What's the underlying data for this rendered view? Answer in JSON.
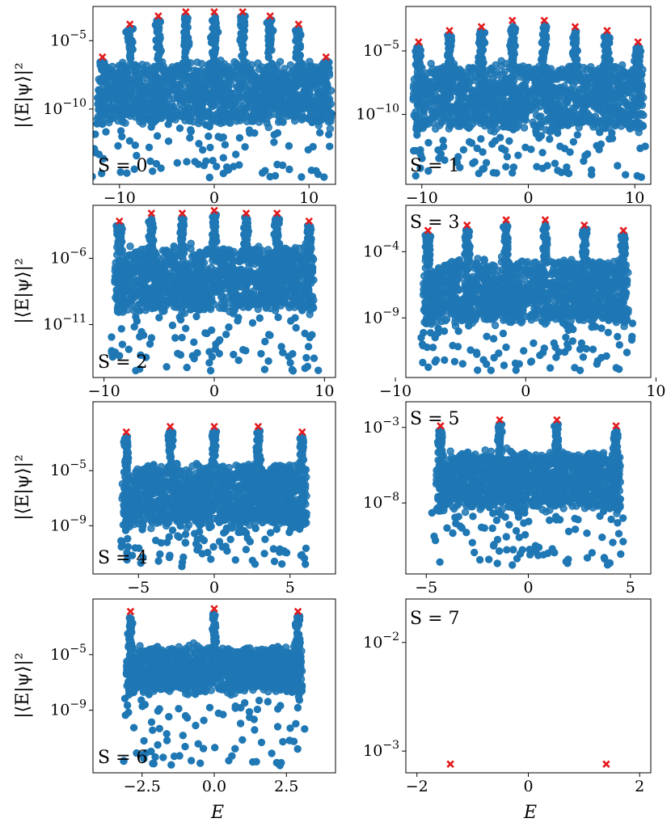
{
  "ylabel": "|⟨E|ψ⟩|²",
  "xlabel": "E",
  "colors": {
    "points": "#1f77b4",
    "markers": "#e41a1c"
  },
  "chart_data": [
    {
      "type": "scatter",
      "label": "S = 0",
      "xlim": [
        -12.8,
        12.8
      ],
      "ylog": true,
      "ylim": [
        -15.5,
        -2.5
      ],
      "xticks": [
        -10,
        0,
        10
      ],
      "yticks": [
        -5,
        -10
      ],
      "markers": [
        [
          -11.8,
          -6.2
        ],
        [
          -8.9,
          -3.8
        ],
        [
          -5.9,
          -3.2
        ],
        [
          -3.0,
          -2.9
        ],
        [
          0.0,
          -2.9
        ],
        [
          3.0,
          -2.9
        ],
        [
          5.9,
          -3.2
        ],
        [
          8.9,
          -3.8
        ],
        [
          11.8,
          -6.2
        ]
      ],
      "cloud_ymax": -6.8,
      "cloud_ymin": -10.8,
      "tail_ymin": -15
    },
    {
      "type": "scatter",
      "label": "S = 1",
      "xlim": [
        -11.5,
        11.5
      ],
      "ylog": true,
      "ylim": [
        -15.5,
        -1.5
      ],
      "xticks": [
        -10,
        0,
        10
      ],
      "yticks": [
        -5,
        -10
      ],
      "markers": [
        [
          -10.3,
          -4.3
        ],
        [
          -7.4,
          -3.4
        ],
        [
          -4.4,
          -3.1
        ],
        [
          -1.5,
          -2.6
        ],
        [
          1.5,
          -2.6
        ],
        [
          4.4,
          -3.1
        ],
        [
          7.4,
          -3.4
        ],
        [
          10.3,
          -4.3
        ]
      ],
      "cloud_ymax": -6.2,
      "cloud_ymin": -11,
      "tail_ymin": -15
    },
    {
      "type": "scatter",
      "label": "S = 2",
      "xlim": [
        -11,
        11
      ],
      "ylog": true,
      "ylim": [
        -15,
        -2
      ],
      "xticks": [
        -10,
        0,
        10
      ],
      "yticks": [
        -6,
        -11
      ],
      "markers": [
        [
          -8.6,
          -3.2
        ],
        [
          -5.7,
          -2.6
        ],
        [
          -2.9,
          -2.6
        ],
        [
          0.0,
          -2.4
        ],
        [
          2.9,
          -2.6
        ],
        [
          5.7,
          -2.6
        ],
        [
          8.6,
          -3.2
        ]
      ],
      "cloud_ymax": -5.3,
      "cloud_ymin": -9.8,
      "tail_ymin": -14.6
    },
    {
      "type": "scatter",
      "label": "S = 3",
      "xlim": [
        -9.2,
        9.6
      ],
      "ylog": true,
      "ylim": [
        -13.5,
        -0.5
      ],
      "xticks": [
        -10,
        0,
        10
      ],
      "yticks": [
        -4,
        -9
      ],
      "markers": [
        [
          -7.5,
          -2.4
        ],
        [
          -4.5,
          -2.0
        ],
        [
          -1.5,
          -1.6
        ],
        [
          1.5,
          -1.6
        ],
        [
          4.5,
          -2.0
        ],
        [
          7.5,
          -2.4
        ]
      ],
      "cloud_ymax": -4.8,
      "cloud_ymin": -9.2,
      "tail_ymin": -13
    },
    {
      "type": "scatter",
      "label": "S = 4",
      "xlim": [
        -8,
        8
      ],
      "ylog": true,
      "ylim": [
        -12.5,
        0
      ],
      "xticks": [
        -5,
        0,
        5
      ],
      "yticks": [
        -5,
        -9
      ],
      "markers": [
        [
          -5.8,
          -2.2
        ],
        [
          -2.9,
          -1.8
        ],
        [
          0.0,
          -1.8
        ],
        [
          2.9,
          -1.8
        ],
        [
          5.8,
          -2.2
        ]
      ],
      "cloud_ymax": -4.7,
      "cloud_ymin": -8.8,
      "tail_ymin": -12
    },
    {
      "type": "scatter",
      "label": "S = 5",
      "xlim": [
        -6,
        6
      ],
      "ylog": true,
      "ylim": [
        -12.7,
        -1.3
      ],
      "xticks": [
        -5,
        0,
        5
      ],
      "yticks": [
        -3,
        -8
      ],
      "markers": [
        [
          -4.3,
          -2.9
        ],
        [
          -1.4,
          -2.5
        ],
        [
          1.4,
          -2.5
        ],
        [
          4.3,
          -2.9
        ]
      ],
      "cloud_ymax": -4.8,
      "cloud_ymin": -8.2,
      "tail_ymin": -12.2
    },
    {
      "type": "scatter",
      "label": "S = 6",
      "xlim": [
        -4.2,
        4.2
      ],
      "ylog": true,
      "ylim": [
        -13.5,
        -1
      ],
      "xticks": [
        -2.5,
        0.0,
        2.5
      ],
      "yticks": [
        -5,
        -9
      ],
      "markers": [
        [
          -2.9,
          -1.9
        ],
        [
          0.0,
          -1.7
        ],
        [
          2.9,
          -1.9
        ]
      ],
      "cloud_ymax": -4.6,
      "cloud_ymin": -7.5,
      "tail_ymin": -13
    },
    {
      "type": "scatter",
      "label": "S = 7",
      "xlim": [
        -2.2,
        2.2
      ],
      "ylog": true,
      "ylim": [
        -3.2,
        -1.6
      ],
      "xticks": [
        -2,
        0,
        2
      ],
      "yticks": [
        -2,
        -3
      ],
      "markers": [
        [
          -1.4,
          -3.12
        ],
        [
          1.4,
          -3.12
        ]
      ]
    }
  ]
}
